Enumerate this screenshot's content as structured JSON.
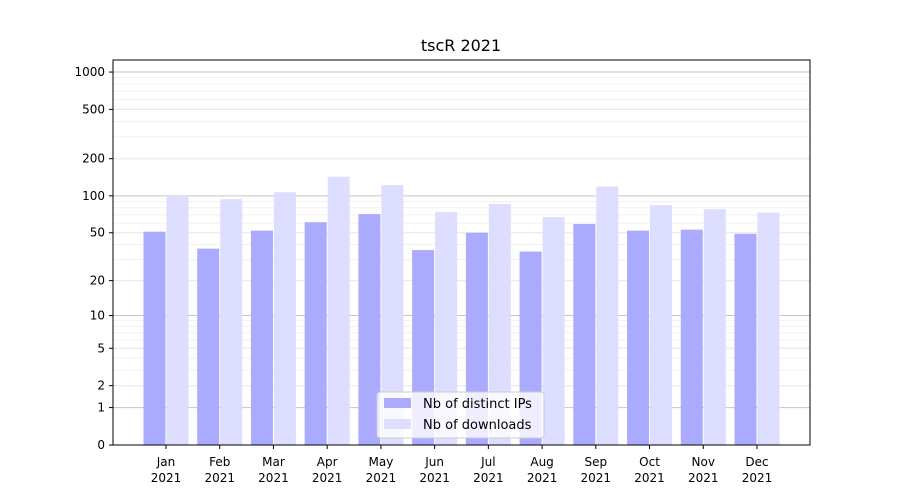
{
  "chart_data": {
    "type": "bar",
    "title": "tscR 2021",
    "xlabel": "",
    "ylabel": "",
    "yscale": "symlog",
    "ylim": [
      0,
      1250
    ],
    "y_ticks": [
      0,
      1,
      2,
      5,
      10,
      20,
      50,
      100,
      200,
      500,
      1000
    ],
    "categories": [
      "Jan\n2021",
      "Feb\n2021",
      "Mar\n2021",
      "Apr\n2021",
      "May\n2021",
      "Jun\n2021",
      "Jul\n2021",
      "Aug\n2021",
      "Sep\n2021",
      "Oct\n2021",
      "Nov\n2021",
      "Dec\n2021"
    ],
    "series": [
      {
        "name": "Nb of distinct IPs",
        "color": "#aaaaff",
        "values": [
          51,
          37,
          52,
          61,
          71,
          36,
          50,
          35,
          59,
          52,
          53,
          49
        ]
      },
      {
        "name": "Nb of downloads",
        "color": "#ddddff",
        "values": [
          100,
          94,
          107,
          143,
          122,
          74,
          86,
          67,
          119,
          84,
          78,
          73
        ]
      }
    ],
    "grid": true,
    "legend_position": "bottom-center"
  }
}
